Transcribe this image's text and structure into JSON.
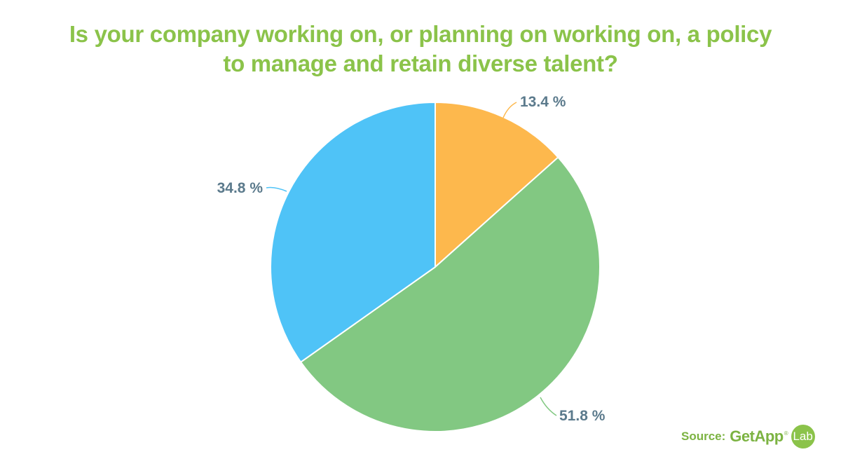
{
  "title": {
    "line1": "Is your company working on, or planning on working on, a policy",
    "line2": "to manage and retain diverse talent?"
  },
  "chart_data": {
    "type": "pie",
    "slices": [
      {
        "value": 13.4,
        "label": "13.4 %",
        "color": "#FDB84D"
      },
      {
        "value": 51.8,
        "label": "51.8 %",
        "color": "#82C882"
      },
      {
        "value": 34.8,
        "label": "34.8 %",
        "color": "#4FC3F7"
      }
    ],
    "start_angle": "12 o'clock, clockwise"
  },
  "source": {
    "label": "Source:",
    "brand": "GetApp",
    "reg": "®",
    "badge": "Lab"
  },
  "colors": {
    "title": "#8BC34A",
    "label_text": "#5B7A8C",
    "source_text": "#7CB342",
    "badge_bg": "#8BC34A"
  }
}
